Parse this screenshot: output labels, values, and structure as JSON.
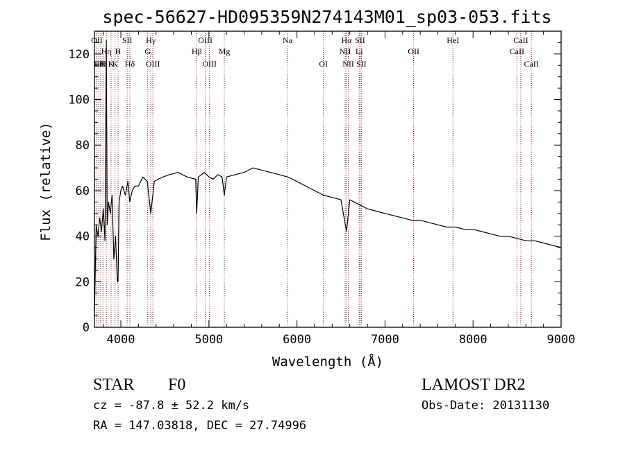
{
  "chart_data": {
    "type": "line",
    "title": "spec-56627-HD095359N274143M01_sp03-053.fits",
    "xlabel": "Wavelength (Å)",
    "ylabel": "Flux (relative)",
    "xlim": [
      3700,
      9000
    ],
    "ylim": [
      0,
      130
    ],
    "xticks": [
      4000,
      5000,
      6000,
      7000,
      8000,
      9000
    ],
    "yticks": [
      0,
      20,
      40,
      60,
      80,
      100,
      120
    ],
    "grid": false,
    "colors": {
      "spectrum": "#000000",
      "lines": "#8b1a1a",
      "axes": "#000000"
    },
    "series": [
      {
        "x": [
          3700,
          3720,
          3740,
          3760,
          3780,
          3800,
          3820,
          3835,
          3845,
          3860,
          3880,
          3900,
          3920,
          3940,
          3960,
          3968,
          3980,
          4000,
          4020,
          4050,
          4080,
          4101,
          4130,
          4160,
          4200,
          4250,
          4300,
          4340,
          4380,
          4420,
          4480,
          4550,
          4650,
          4750,
          4850,
          4861,
          4880,
          4950,
          5000,
          5050,
          5100,
          5150,
          5175,
          5200,
          5300,
          5400,
          5500,
          5600,
          5700,
          5800,
          5893,
          5950,
          6000,
          6100,
          6200,
          6300,
          6400,
          6500,
          6563,
          6600,
          6700,
          6800,
          6900,
          7000,
          7100,
          7200,
          7300,
          7400,
          7500,
          7600,
          7700,
          7800,
          7900,
          8000,
          8100,
          8200,
          8300,
          8400,
          8500,
          8600,
          8700,
          8800,
          8900,
          9000
        ],
        "y": [
          5,
          45,
          40,
          48,
          42,
          52,
          38,
          126,
          45,
          55,
          50,
          58,
          30,
          40,
          20,
          20,
          55,
          60,
          62,
          58,
          64,
          55,
          60,
          62,
          62,
          66,
          64,
          50,
          64,
          65,
          66,
          67,
          68,
          66,
          65,
          50,
          66,
          68,
          66,
          65,
          67,
          66,
          58,
          66,
          67,
          68,
          70,
          69,
          68,
          67,
          66,
          65,
          64,
          62,
          60,
          58,
          57,
          56,
          42,
          56,
          54,
          52,
          51,
          50,
          49,
          48,
          47,
          47,
          46,
          45,
          44,
          44,
          43,
          43,
          42,
          41,
          40,
          40,
          39,
          38,
          38,
          37,
          36,
          35
        ]
      }
    ],
    "line_ids": [
      {
        "label": "OII",
        "x": 3727,
        "row": 1
      },
      {
        "label": "Hη",
        "x": 3835,
        "row": 2
      },
      {
        "label": "Hθ",
        "x": 3750,
        "row": 3
      },
      {
        "label": "Hθ",
        "x": 3771,
        "row": 3
      },
      {
        "label": "K",
        "x": 3797,
        "row": 3
      },
      {
        "label": "K",
        "x": 3889,
        "row": 3
      },
      {
        "label": "H",
        "x": 3968,
        "row": 2
      },
      {
        "label": "K",
        "x": 3934,
        "row": 3
      },
      {
        "label": "SII",
        "x": 4072,
        "row": 1
      },
      {
        "label": "Hδ",
        "x": 4102,
        "row": 3
      },
      {
        "label": "Hγ",
        "x": 4340,
        "row": 1
      },
      {
        "label": "G",
        "x": 4305,
        "row": 2
      },
      {
        "label": "OIII",
        "x": 4363,
        "row": 3
      },
      {
        "label": "Hβ",
        "x": 4861,
        "row": 2
      },
      {
        "label": "OIII",
        "x": 4959,
        "row": 1
      },
      {
        "label": "OIII",
        "x": 5007,
        "row": 3
      },
      {
        "label": "Mg",
        "x": 5175,
        "row": 2
      },
      {
        "label": "Na",
        "x": 5893,
        "row": 1
      },
      {
        "label": "OI",
        "x": 6300,
        "row": 3
      },
      {
        "label": "Hα",
        "x": 6563,
        "row": 1
      },
      {
        "label": "NII",
        "x": 6548,
        "row": 2
      },
      {
        "label": "NII",
        "x": 6583,
        "row": 3
      },
      {
        "label": "SII",
        "x": 6716,
        "row": 1
      },
      {
        "label": "Li",
        "x": 6707,
        "row": 2
      },
      {
        "label": "SII",
        "x": 6731,
        "row": 3
      },
      {
        "label": "OII",
        "x": 7325,
        "row": 2
      },
      {
        "label": "HeI",
        "x": 7772,
        "row": 1
      },
      {
        "label": "CaII",
        "x": 8542,
        "row": 1
      },
      {
        "label": "CaII",
        "x": 8498,
        "row": 2
      },
      {
        "label": "CaII",
        "x": 8662,
        "row": 3
      }
    ]
  },
  "info": {
    "class_label": "STAR",
    "subclass": "F0",
    "survey": "LAMOST DR2",
    "redshift": "cz = -87.8 ± 52.2 km/s",
    "obs_date": "Obs-Date: 20131130",
    "coords": "RA = 147.03818, DEC =  27.74996"
  }
}
